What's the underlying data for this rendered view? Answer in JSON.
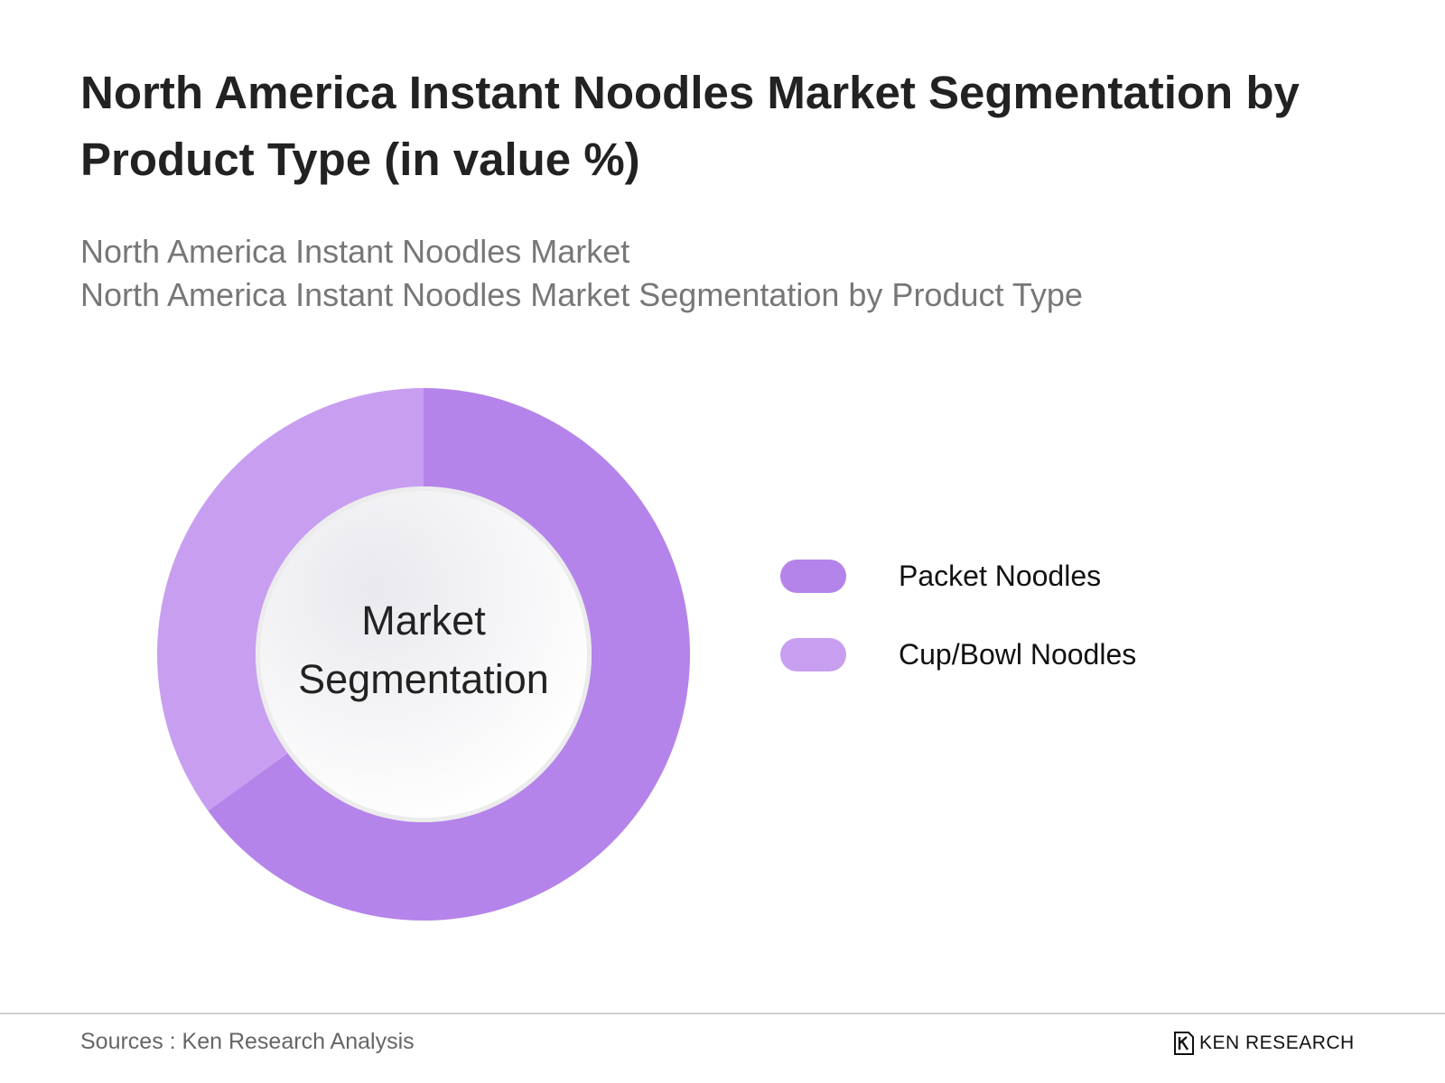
{
  "title": "North America Instant Noodles Market Segmentation by Product Type (in value %)",
  "subtitle_line1": "North America Instant Noodles Market",
  "subtitle_line2": "North America Instant Noodles Market Segmentation by Product Type",
  "center_label": "Market Segmentation",
  "legend": [
    {
      "label": "Packet Noodles",
      "color": "#b584ea"
    },
    {
      "label": "Cup/Bowl Noodles",
      "color": "#c89ff0"
    }
  ],
  "source": "Sources : Ken Research Analysis",
  "logo_text": "KEN RESEARCH",
  "chart_data": {
    "type": "pie",
    "categories": [
      "Packet Noodles",
      "Cup/Bowl Noodles"
    ],
    "values": [
      65,
      35
    ],
    "colors": [
      "#b584ea",
      "#c89ff0"
    ],
    "legend_position": "right"
  }
}
